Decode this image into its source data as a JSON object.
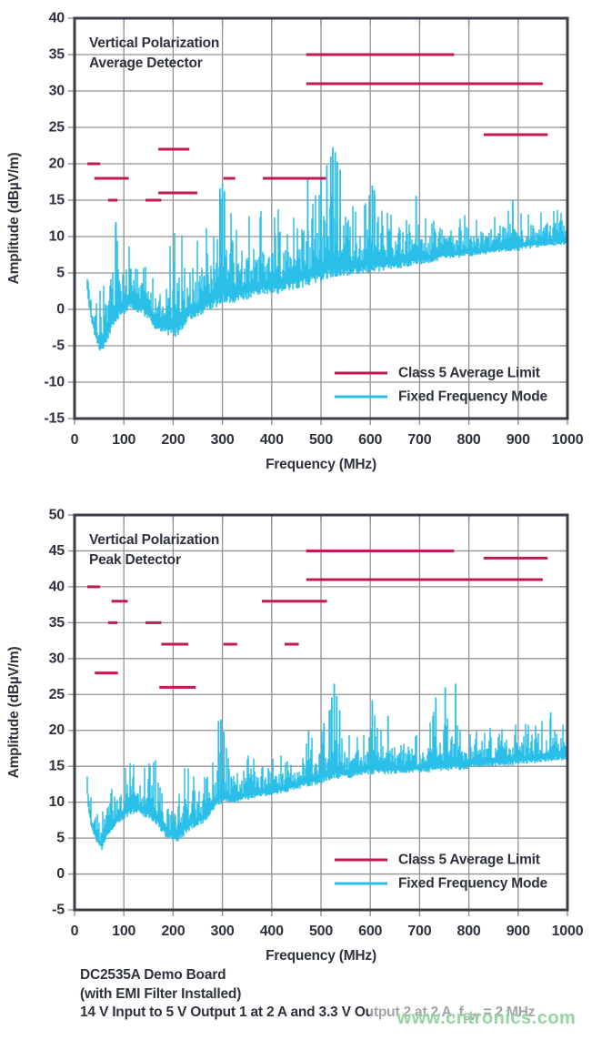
{
  "colors": {
    "limit": "#bf1a56",
    "signal": "#2abfe8",
    "text": "#2e323c",
    "grid": "#929292",
    "frame": "#3a3e46",
    "watermark_green": "#96d4a2"
  },
  "caption": {
    "line1": "DC2535A Demo Board",
    "line2": "(with EMI Filter Installed)",
    "line3_pre": "14 V Input to 5 V Output 1 at 2 A and 3.3 V Output 2 at 2 A, f",
    "line3_sub": "SW",
    "line3_post": " = 2 MHz"
  },
  "watermark": "www.cntronics.com",
  "chart_data": [
    {
      "type": "line",
      "title_lines": [
        "Vertical Polarization",
        "Average Detector"
      ],
      "xlabel": "Frequency (MHz)",
      "ylabel": "Amplitude (dBµV/m)",
      "xlim": [
        0,
        1000
      ],
      "ylim": [
        -15,
        40
      ],
      "xtick_step": 100,
      "ytick_step": 5,
      "grid": true,
      "legend_position": "bottom-right",
      "legend": [
        {
          "label": "Class 5 Average Limit",
          "color": "limit"
        },
        {
          "label": "Fixed Frequency Mode",
          "color": "signal"
        }
      ],
      "limit_segments_mhz_db": [
        [
          26,
          52,
          20
        ],
        [
          40,
          110,
          18
        ],
        [
          68,
          87,
          15
        ],
        [
          144,
          176,
          15
        ],
        [
          170,
          233,
          22
        ],
        [
          170,
          249,
          16
        ],
        [
          302,
          326,
          18
        ],
        [
          382,
          510,
          18
        ],
        [
          470,
          770,
          35
        ],
        [
          470,
          950,
          31
        ],
        [
          830,
          960,
          24
        ]
      ],
      "signal_envelope_mhz_hi_lo": [
        [
          24,
          7,
          4
        ],
        [
          28,
          6,
          1
        ],
        [
          35,
          4.5,
          -2
        ],
        [
          45,
          3,
          -4.5
        ],
        [
          55,
          3.5,
          -6.2
        ],
        [
          65,
          5,
          -4.5
        ],
        [
          75,
          9,
          -3
        ],
        [
          83,
          12,
          -2
        ],
        [
          92,
          10,
          -1
        ],
        [
          102,
          8.5,
          -0.5
        ],
        [
          112,
          9,
          0
        ],
        [
          122,
          9.5,
          0
        ],
        [
          132,
          9,
          -0.5
        ],
        [
          142,
          9.5,
          -1
        ],
        [
          152,
          7,
          -1.5
        ],
        [
          162,
          4,
          -2.5
        ],
        [
          172,
          4.5,
          -3
        ],
        [
          182,
          6.5,
          -3.2
        ],
        [
          192,
          9,
          -3.5
        ],
        [
          202,
          11,
          -4
        ],
        [
          212,
          10,
          -3.5
        ],
        [
          222,
          12,
          -2.5
        ],
        [
          235,
          10,
          -1.5
        ],
        [
          248,
          9.5,
          -1
        ],
        [
          260,
          11,
          -0.5
        ],
        [
          272,
          12,
          0
        ],
        [
          282,
          11,
          0.2
        ],
        [
          292,
          16,
          0.5
        ],
        [
          302,
          16.5,
          0.8
        ],
        [
          312,
          14.5,
          1
        ],
        [
          325,
          12.5,
          1
        ],
        [
          340,
          13,
          1.2
        ],
        [
          355,
          14,
          1.5
        ],
        [
          370,
          13,
          1.8
        ],
        [
          385,
          15,
          2
        ],
        [
          400,
          13.5,
          2
        ],
        [
          415,
          14,
          2.2
        ],
        [
          430,
          15,
          2.5
        ],
        [
          445,
          14,
          2.8
        ],
        [
          460,
          15,
          3
        ],
        [
          473,
          17,
          3.2
        ],
        [
          487,
          16,
          3.5
        ],
        [
          500,
          17.5,
          3.8
        ],
        [
          512,
          19,
          4
        ],
        [
          520,
          20.5,
          4.2
        ],
        [
          528,
          21.8,
          4.3
        ],
        [
          538,
          20,
          4.4
        ],
        [
          548,
          17,
          4.5
        ],
        [
          560,
          15,
          4.8
        ],
        [
          575,
          14,
          5
        ],
        [
          590,
          16,
          5
        ],
        [
          605,
          16.5,
          5.2
        ],
        [
          618,
          15.5,
          5.3
        ],
        [
          632,
          13.5,
          5.5
        ],
        [
          648,
          14,
          5.6
        ],
        [
          662,
          13.5,
          5.8
        ],
        [
          678,
          12.5,
          6
        ],
        [
          693,
          15,
          6.2
        ],
        [
          708,
          14,
          6.4
        ],
        [
          722,
          12.5,
          6.5
        ],
        [
          738,
          13,
          6.8
        ],
        [
          752,
          13.5,
          7
        ],
        [
          768,
          12.5,
          7
        ],
        [
          782,
          13,
          7.2
        ],
        [
          798,
          13,
          7.4
        ],
        [
          812,
          12.5,
          7.5
        ],
        [
          828,
          13,
          7.6
        ],
        [
          842,
          12.5,
          7.8
        ],
        [
          858,
          13.5,
          8
        ],
        [
          872,
          14,
          8
        ],
        [
          888,
          14.5,
          8.1
        ],
        [
          902,
          14,
          8.2
        ],
        [
          918,
          13.5,
          8.4
        ],
        [
          932,
          14,
          8.5
        ],
        [
          948,
          13.5,
          8.6
        ],
        [
          962,
          13,
          8.8
        ],
        [
          978,
          14,
          8.9
        ],
        [
          1000,
          13,
          9
        ]
      ],
      "signal_spikes_mhz_db": [
        [
          84,
          12
        ],
        [
          295,
          16.6
        ],
        [
          300,
          17.3
        ],
        [
          304,
          16.2
        ],
        [
          473,
          18
        ],
        [
          500,
          18
        ],
        [
          512,
          19.8
        ],
        [
          520,
          21
        ],
        [
          524,
          22.3
        ],
        [
          529,
          21.6
        ],
        [
          533,
          20.3
        ],
        [
          539,
          19.2
        ],
        [
          604,
          17
        ],
        [
          608,
          16.4
        ],
        [
          693,
          15.6
        ],
        [
          889,
          15
        ]
      ],
      "noise_seed": 101
    },
    {
      "type": "line",
      "title_lines": [
        "Vertical Polarization",
        "Peak Detector"
      ],
      "xlabel": "Frequency (MHz)",
      "ylabel": "Amplitude (dBµV/m)",
      "xlim": [
        0,
        1000
      ],
      "ylim": [
        -5,
        50
      ],
      "xtick_step": 100,
      "ytick_step": 5,
      "grid": true,
      "legend_position": "bottom-right",
      "legend": [
        {
          "label": "Class 5 Average Limit",
          "color": "limit"
        },
        {
          "label": "Fixed Frequency Mode",
          "color": "signal"
        }
      ],
      "limit_segments_mhz_db": [
        [
          26,
          52,
          40
        ],
        [
          75,
          108,
          38
        ],
        [
          68,
          87,
          35
        ],
        [
          144,
          176,
          35
        ],
        [
          41,
          88,
          28
        ],
        [
          176,
          231,
          32
        ],
        [
          172,
          246,
          26
        ],
        [
          302,
          330,
          32
        ],
        [
          426,
          455,
          32
        ],
        [
          380,
          512,
          38
        ],
        [
          470,
          770,
          45
        ],
        [
          470,
          950,
          41
        ],
        [
          830,
          960,
          44
        ]
      ],
      "signal_envelope_mhz_hi_lo": [
        [
          24,
          17,
          13
        ],
        [
          28,
          16,
          9
        ],
        [
          35,
          12,
          6
        ],
        [
          45,
          9,
          4.5
        ],
        [
          55,
          8.5,
          3.4
        ],
        [
          65,
          11,
          5
        ],
        [
          75,
          12,
          6
        ],
        [
          85,
          13,
          7
        ],
        [
          95,
          14,
          7.5
        ],
        [
          105,
          15.5,
          8
        ],
        [
          117,
          15.5,
          8.5
        ],
        [
          130,
          14.5,
          8.5
        ],
        [
          142,
          15,
          8
        ],
        [
          158,
          16,
          7.5
        ],
        [
          170,
          15.8,
          6.5
        ],
        [
          180,
          15.3,
          5.5
        ],
        [
          192,
          13,
          4.8
        ],
        [
          205,
          15.5,
          4.2
        ],
        [
          215,
          14,
          5
        ],
        [
          225,
          15.8,
          5.5
        ],
        [
          240,
          14,
          6.5
        ],
        [
          255,
          13.5,
          7
        ],
        [
          268,
          14,
          7.5
        ],
        [
          280,
          16.5,
          8.5
        ],
        [
          292,
          20.5,
          9.5
        ],
        [
          302,
          19.5,
          10
        ],
        [
          312,
          17,
          10
        ],
        [
          325,
          15.5,
          10
        ],
        [
          340,
          16,
          10.3
        ],
        [
          355,
          17,
          10.5
        ],
        [
          370,
          16,
          10.8
        ],
        [
          385,
          17,
          11
        ],
        [
          400,
          16.5,
          11
        ],
        [
          415,
          17,
          11.3
        ],
        [
          430,
          17.5,
          11.5
        ],
        [
          445,
          17,
          11.8
        ],
        [
          460,
          18,
          12
        ],
        [
          475,
          19.5,
          12.2
        ],
        [
          490,
          19,
          12.5
        ],
        [
          505,
          20.5,
          12.8
        ],
        [
          517,
          22.5,
          13
        ],
        [
          527,
          25.8,
          13.2
        ],
        [
          537,
          22.5,
          13.3
        ],
        [
          548,
          20,
          13.4
        ],
        [
          560,
          19.5,
          13.5
        ],
        [
          575,
          19,
          13.8
        ],
        [
          590,
          20,
          14
        ],
        [
          605,
          23.5,
          14
        ],
        [
          618,
          20,
          14
        ],
        [
          635,
          21.5,
          14
        ],
        [
          650,
          20.5,
          14
        ],
        [
          665,
          21,
          14.2
        ],
        [
          680,
          19.5,
          14.2
        ],
        [
          700,
          19.5,
          14.3
        ],
        [
          718,
          20.5,
          14.3
        ],
        [
          733,
          24,
          14.4
        ],
        [
          742,
          20,
          14.4
        ],
        [
          752,
          25,
          14.5
        ],
        [
          762,
          20,
          14.5
        ],
        [
          773,
          25.8,
          14.6
        ],
        [
          785,
          19.5,
          14.6
        ],
        [
          800,
          20,
          14.8
        ],
        [
          815,
          20.5,
          15
        ],
        [
          830,
          20,
          15
        ],
        [
          845,
          21,
          15.1
        ],
        [
          860,
          21.5,
          15.2
        ],
        [
          875,
          20.5,
          15.2
        ],
        [
          890,
          21,
          15.3
        ],
        [
          905,
          21,
          15.4
        ],
        [
          920,
          21.5,
          15.5
        ],
        [
          935,
          21,
          15.5
        ],
        [
          950,
          21.5,
          15.6
        ],
        [
          965,
          22.3,
          15.8
        ],
        [
          980,
          22,
          15.9
        ],
        [
          1000,
          21,
          16
        ]
      ],
      "signal_spikes_mhz_db": [
        [
          292,
          21.3
        ],
        [
          297,
          21.5
        ],
        [
          303,
          19.8
        ],
        [
          475,
          20
        ],
        [
          506,
          21
        ],
        [
          517,
          22.8
        ],
        [
          522,
          24.6
        ],
        [
          527,
          26.5
        ],
        [
          532,
          24.8
        ],
        [
          538,
          22.8
        ],
        [
          604,
          24.2
        ],
        [
          636,
          22
        ],
        [
          733,
          24.6
        ],
        [
          752,
          26
        ],
        [
          773,
          26.5
        ],
        [
          966,
          22.5
        ]
      ],
      "noise_seed": 202
    }
  ]
}
